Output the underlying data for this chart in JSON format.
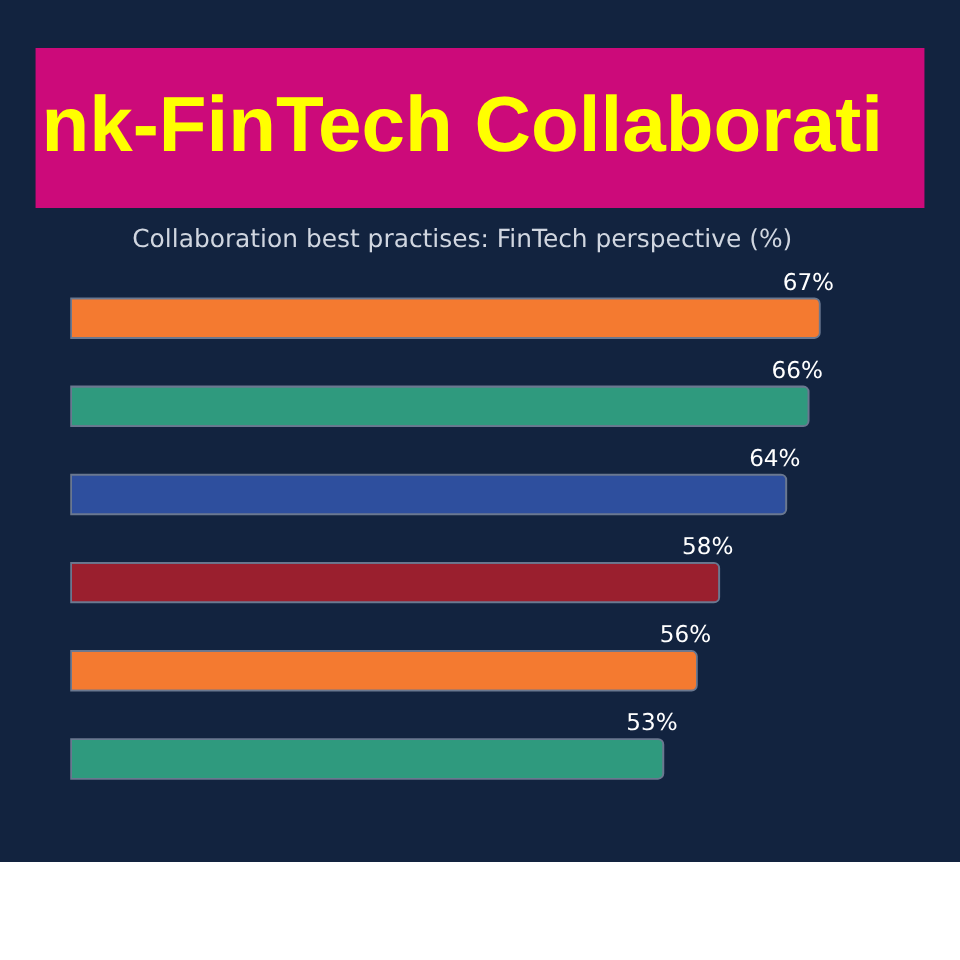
{
  "chart_data": {
    "type": "bar",
    "orientation": "horizontal",
    "title": "nk-FinTech Collaborati",
    "subtitle": "Collaboration best practises: FinTech perspective (%)",
    "categories": [
      null,
      null,
      null,
      null,
      null,
      null
    ],
    "values": [
      67,
      66,
      64,
      58,
      56,
      53
    ],
    "colors": [
      "#f47a30",
      "#2f9a7e",
      "#2e4f9e",
      "#9a1f2e",
      "#f47a30",
      "#2f9a7e"
    ],
    "value_labels": [
      "67%",
      "66%",
      "64%",
      "58%",
      "56%",
      "53%"
    ],
    "tick_labels": false
  }
}
